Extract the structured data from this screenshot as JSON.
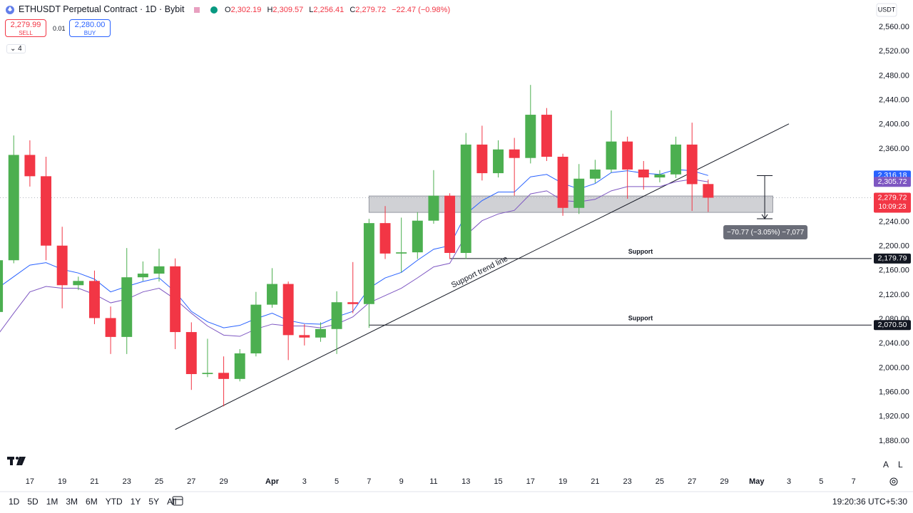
{
  "chart_data": {
    "type": "candlestick",
    "title": "ETHUSDT Perpetual Contract · 1D · Bybit",
    "x": [
      15,
      16,
      17,
      18,
      19,
      20,
      21,
      22,
      23,
      24,
      25,
      26,
      27,
      28,
      29,
      30,
      31,
      32,
      33,
      34,
      35,
      36,
      37,
      38,
      39,
      40,
      41,
      42,
      43,
      44,
      45,
      46,
      47,
      48,
      49,
      50,
      51,
      52,
      53,
      54,
      55,
      56,
      57,
      58,
      59
    ],
    "open": [
      2092,
      2177,
      2350,
      2315,
      2201,
      2136,
      2143,
      2082,
      2051,
      2149,
      2155,
      2167,
      2059,
      1990,
      1992,
      1982,
      2024,
      2104,
      2138,
      2054,
      2050,
      2064,
      2108,
      2105,
      2238,
      2188,
      2190,
      2242,
      2283,
      2189,
      2367,
      2320,
      2359,
      2345,
      2416,
      2347,
      2263,
      2311,
      2326,
      2372,
      2326,
      2313,
      2318,
      2367,
      2302.19
    ],
    "high": [
      2190,
      2382,
      2374,
      2347,
      2232,
      2150,
      2160,
      2101,
      2197,
      2175,
      2196,
      2180,
      2075,
      2048,
      2019,
      2031,
      2125,
      2164,
      2142,
      2072,
      2075,
      2126,
      2174,
      2245,
      2266,
      2247,
      2256,
      2325,
      2287,
      2386,
      2398,
      2374,
      2378,
      2465,
      2427,
      2352,
      2335,
      2342,
      2423,
      2380,
      2340,
      2325,
      2380,
      2403,
      2309.57
    ],
    "low": [
      2080,
      2172,
      2298,
      2177,
      2098,
      2128,
      2072,
      2023,
      2023,
      2143,
      2142,
      2031,
      1964,
      1985,
      1937,
      1978,
      2019,
      2099,
      2013,
      2037,
      2043,
      2023,
      2090,
      2066,
      2179,
      2157,
      2179,
      2237,
      2179,
      2179,
      2308,
      2313,
      2283,
      2336,
      2340,
      2250,
      2253,
      2304,
      2321,
      2278,
      2293,
      2305,
      2312,
      2258,
      2256.41
    ],
    "close": [
      2177,
      2350,
      2315,
      2201,
      2136,
      2143,
      2082,
      2051,
      2149,
      2155,
      2167,
      2059,
      1990,
      1992,
      1982,
      2024,
      2104,
      2138,
      2054,
      2050,
      2064,
      2108,
      2105,
      2238,
      2188,
      2190,
      2242,
      2283,
      2189,
      2367,
      2320,
      2359,
      2345,
      2416,
      2347,
      2263,
      2311,
      2326,
      2372,
      2326,
      2313,
      2318,
      2367,
      2302,
      2279.72
    ],
    "up_color": "#4caf50",
    "down_color": "#f23645",
    "overlays": [
      {
        "color": "#2962ff",
        "values": [
          2131,
          2150,
          2169,
          2173,
          2162,
          2156,
          2146,
          2125,
          2134,
          2142,
          2148,
          2125,
          2093,
          2076,
          2066,
          2070,
          2081,
          2090,
          2078,
          2073,
          2072,
          2084,
          2093,
          2131,
          2148,
          2157,
          2177,
          2195,
          2201,
          2253,
          2275,
          2289,
          2289,
          2314,
          2318,
          2303,
          2294,
          2303,
          2321,
          2324,
          2320,
          2318,
          2326,
          2324,
          2316.18
        ]
      },
      {
        "color": "#7e57c2",
        "values": [
          2054,
          2090,
          2125,
          2134,
          2131,
          2131,
          2121,
          2107,
          2113,
          2125,
          2131,
          2113,
          2090,
          2069,
          2054,
          2052,
          2064,
          2072,
          2069,
          2069,
          2066,
          2072,
          2084,
          2107,
          2119,
          2131,
          2148,
          2166,
          2172,
          2218,
          2242,
          2253,
          2259,
          2286,
          2291,
          2275,
          2273,
          2277,
          2291,
          2298,
          2298,
          2298,
          2306,
          2310,
          2305.72
        ]
      }
    ],
    "xlim": [
      15.15,
      69.12
    ],
    "ylim": [
      1832,
      2604.5
    ],
    "xticks": [
      17,
      19,
      21,
      23,
      25,
      27,
      29,
      {
        "value": 32,
        "label": "Apr"
      },
      {
        "value": 34,
        "label": "3"
      },
      {
        "value": 36,
        "label": "5"
      },
      {
        "value": 38,
        "label": "7"
      },
      {
        "value": 40,
        "label": "9"
      },
      {
        "value": 42,
        "label": "11"
      },
      {
        "value": 44,
        "label": "13"
      },
      {
        "value": 46,
        "label": "15"
      },
      {
        "value": 48,
        "label": "17"
      },
      {
        "value": 50,
        "label": "19"
      },
      {
        "value": 52,
        "label": "21"
      },
      {
        "value": 54,
        "label": "23"
      },
      {
        "value": 56,
        "label": "25"
      },
      {
        "value": 58,
        "label": "27"
      },
      {
        "value": 60,
        "label": "29"
      },
      {
        "value": 62,
        "label": "May"
      },
      {
        "value": 64,
        "label": "3"
      },
      {
        "value": 66,
        "label": "5"
      },
      {
        "value": 68,
        "label": "7"
      }
    ],
    "yticks": [
      {
        "value": 1880,
        "label": "1,880.00"
      },
      {
        "value": 1920,
        "label": "1,920.00"
      },
      {
        "value": 1960,
        "label": "1,960.00"
      },
      {
        "value": 2000,
        "label": "2,000.00"
      },
      {
        "value": 2040,
        "label": "2,040.00"
      },
      {
        "value": 2080,
        "label": "2,080.00"
      },
      {
        "value": 2120,
        "label": "2,120.00"
      },
      {
        "value": 2160,
        "label": "2,160.00"
      },
      {
        "value": 2200,
        "label": "2,200.00"
      },
      {
        "value": 2240,
        "label": "2,240.00"
      },
      {
        "value": 2360,
        "label": "2,360.00"
      },
      {
        "value": 2400,
        "label": "2,400.00"
      },
      {
        "value": 2440,
        "label": "2,440.00"
      },
      {
        "value": 2480,
        "label": "2,480.00"
      },
      {
        "value": 2520,
        "label": "2,520.00"
      },
      {
        "value": 2560,
        "label": "2,560.00"
      }
    ],
    "grid": false,
    "price_tags": [
      {
        "value": 2316.18,
        "label": "2,316.18",
        "color": "#2962ff"
      },
      {
        "value": 2305.72,
        "label": "2,305.72",
        "color": "#7e57c2"
      },
      {
        "value": 2279.72,
        "label": "2,279.72",
        "sub": "10:09:23",
        "color": "#f23645"
      }
    ],
    "levels": [
      {
        "value": 2179.79,
        "label": "2,179.79",
        "text": "Support",
        "start": 43
      },
      {
        "value": 2070.5,
        "label": "2,070.50",
        "text": "Support",
        "start": 38
      }
    ],
    "zone": {
      "x": [
        38,
        63
      ],
      "y": [
        2255.6,
        2282.5
      ]
    },
    "trend_line": {
      "text": "Support trend line",
      "x": [
        26,
        64
      ],
      "y": [
        1899,
        2401
      ]
    },
    "measure": {
      "x": 62.5,
      "from": 2316,
      "to": 2245.23,
      "label": "−70.77 (−3.05%) −7,077"
    }
  },
  "header": {
    "ohlc": [
      [
        "O",
        "2,302.19"
      ],
      [
        "H",
        "2,309.57"
      ],
      [
        "L",
        "2,256.41"
      ],
      [
        "C",
        "2,279.72"
      ]
    ],
    "change": "−22.47 (−0.98%)",
    "sell_price": "2,279.99",
    "sell": "SELL",
    "spread": "0.01",
    "buy_price": "2,280.00",
    "buy": "BUY",
    "indicators": "4",
    "currency": "USDT"
  },
  "footer": {
    "ranges": [
      "1D",
      "5D",
      "1M",
      "3M",
      "6M",
      "YTD",
      "1Y",
      "5Y",
      "All"
    ],
    "time": "19:20:36 UTC+5:30",
    "scale_buttons": [
      "A",
      "L"
    ]
  }
}
